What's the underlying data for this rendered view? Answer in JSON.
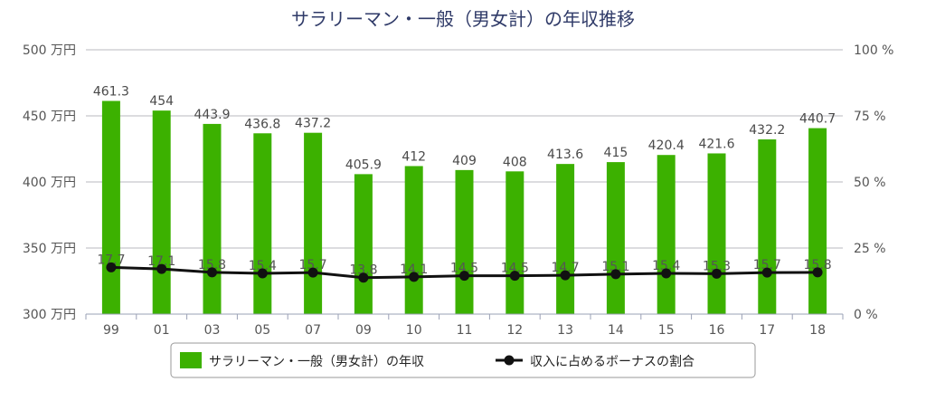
{
  "chart_data": {
    "type": "bar",
    "title": "サラリーマン・一般（男女計）の年収推移",
    "categories": [
      "99",
      "01",
      "03",
      "05",
      "07",
      "09",
      "10",
      "11",
      "12",
      "13",
      "14",
      "15",
      "16",
      "17",
      "18"
    ],
    "series": [
      {
        "name": "サラリーマン・一般（男女計）の年収",
        "type": "bar",
        "axis": "left",
        "color": "#3cb100",
        "values": [
          461.3,
          454,
          443.9,
          436.8,
          437.2,
          405.9,
          412,
          409,
          408,
          413.6,
          415,
          420.4,
          421.6,
          432.2,
          440.7
        ]
      },
      {
        "name": "収入に占めるボーナスの割合",
        "type": "line",
        "axis": "right",
        "color": "#111111",
        "values": [
          17.7,
          17.1,
          15.8,
          15.4,
          15.7,
          13.8,
          14.1,
          14.5,
          14.5,
          14.7,
          15.1,
          15.4,
          15.3,
          15.7,
          15.8
        ]
      }
    ],
    "y_left": {
      "ylim": [
        300,
        500
      ],
      "ticks": [
        300,
        350,
        400,
        450,
        500
      ],
      "unit": "万円"
    },
    "y_right": {
      "ylim": [
        0,
        100
      ],
      "ticks": [
        0,
        25,
        50,
        75,
        100
      ],
      "unit": "%"
    },
    "grid": true,
    "legend_position": "bottom"
  }
}
